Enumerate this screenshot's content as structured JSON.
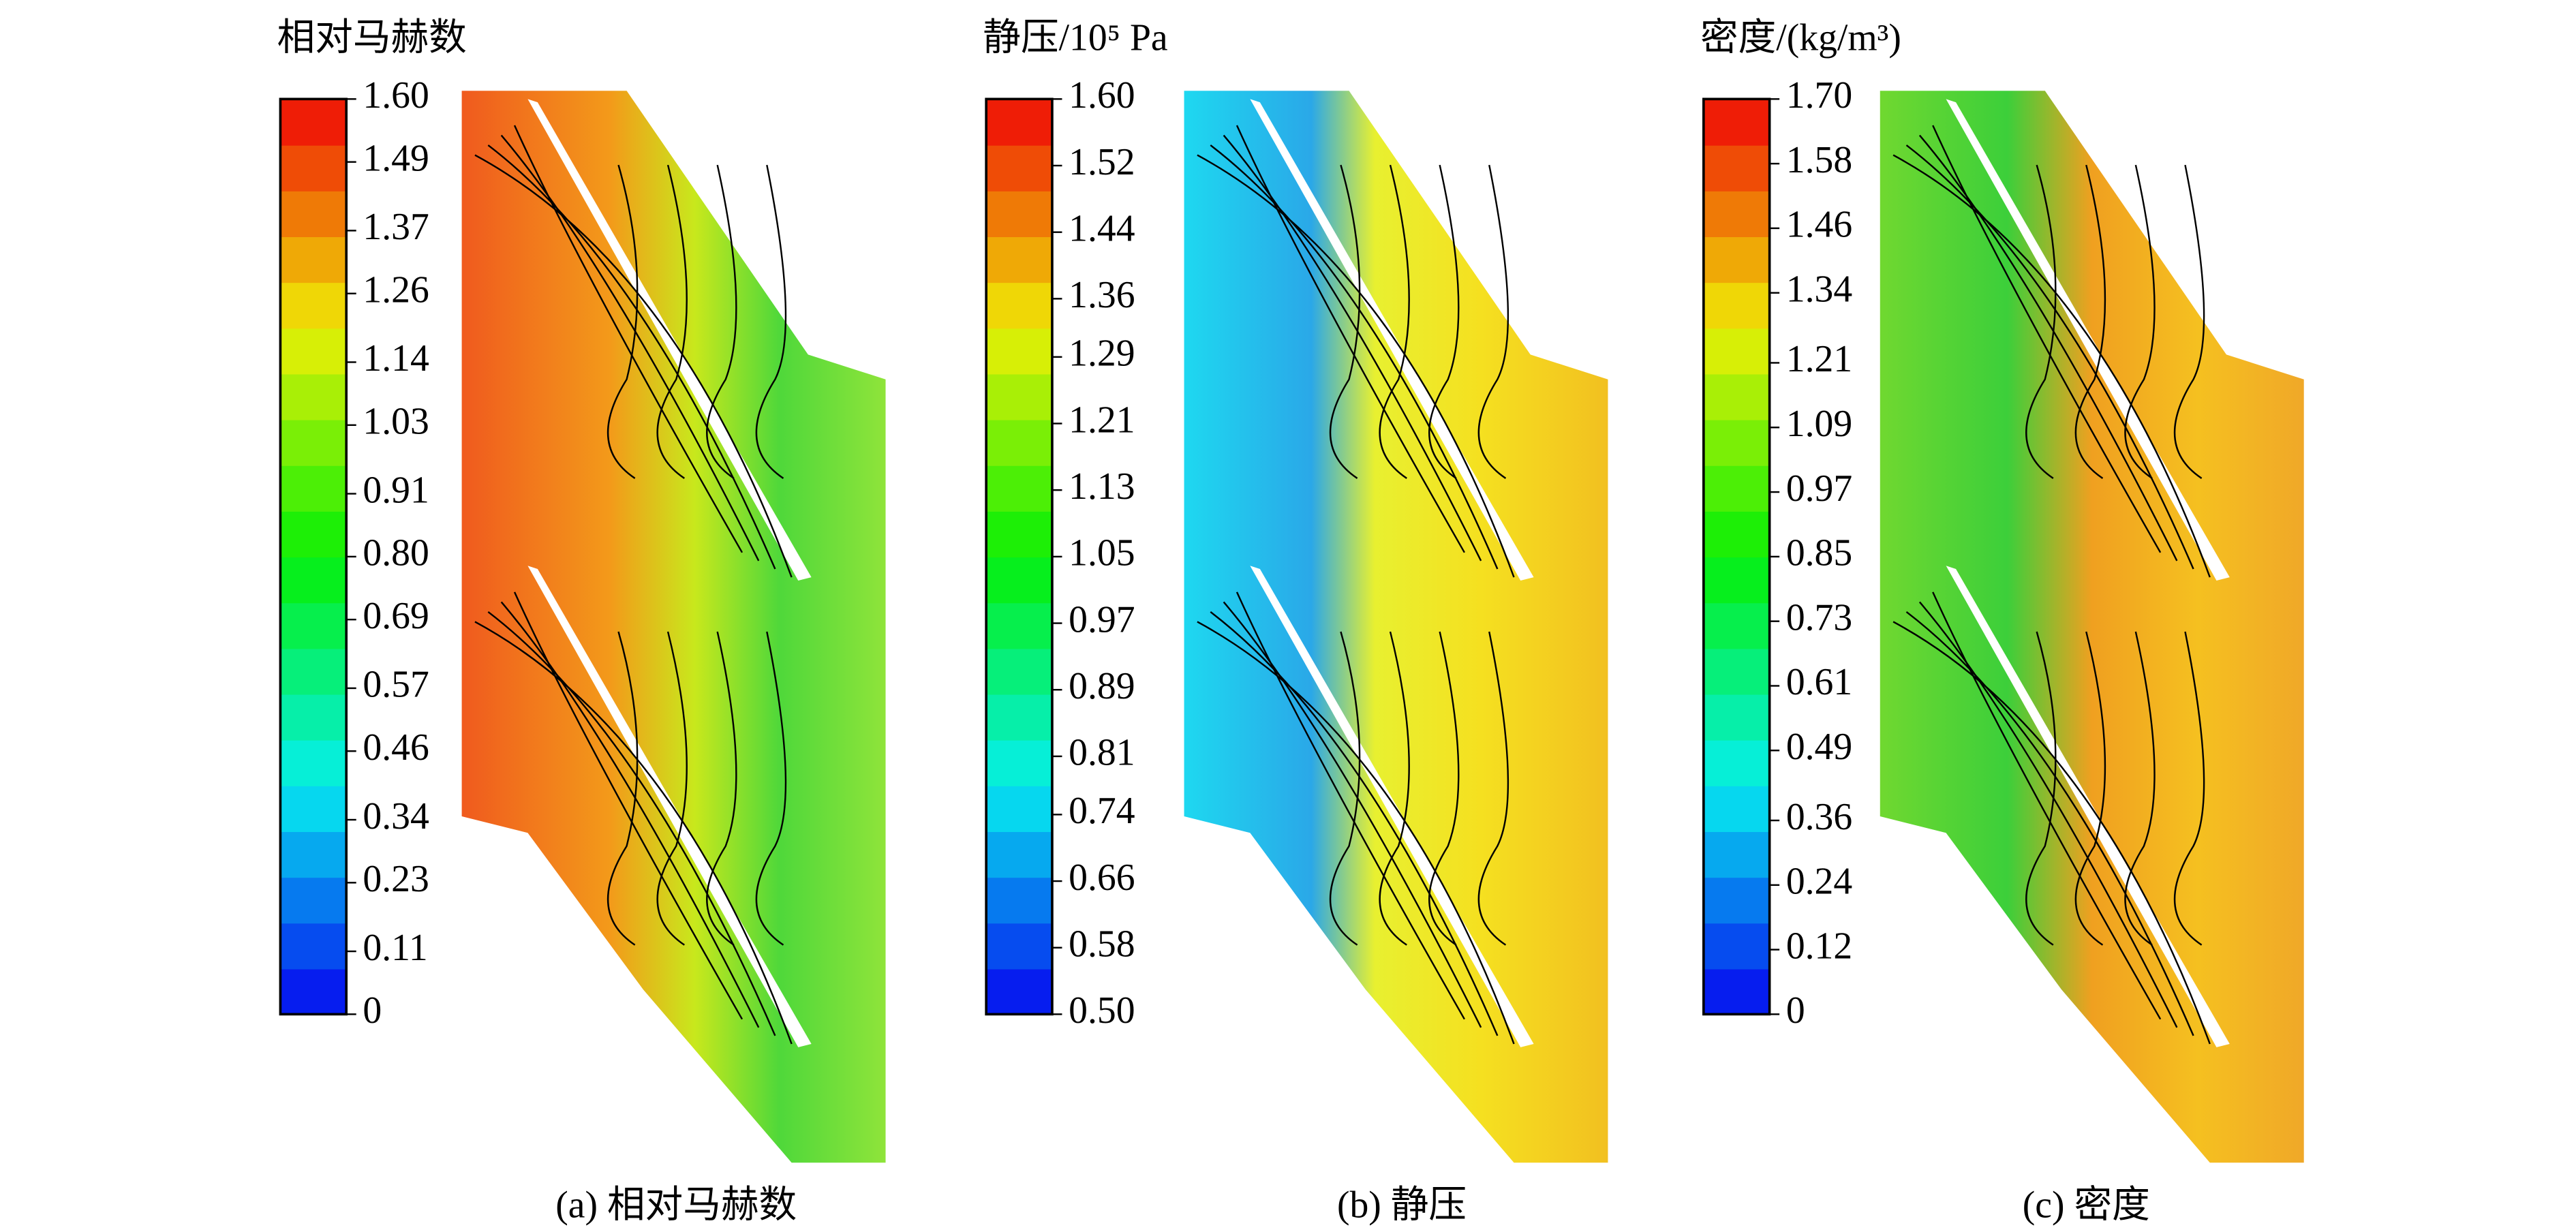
{
  "chart_data": [
    {
      "type": "contour",
      "title": "相对马赫数",
      "caption": "(a) 相对马赫数",
      "ylim": [
        0,
        1.6
      ],
      "yticks": [
        0,
        0.11,
        0.23,
        0.34,
        0.46,
        0.57,
        0.69,
        {
          "value": 0.8,
          "label": "0.80"
        },
        0.91,
        1.03,
        1.14,
        1.26,
        1.37,
        1.49,
        {
          "value": 1.6,
          "label": "1.60"
        }
      ]
    },
    {
      "type": "contour",
      "title": "静压/10⁵ Pa",
      "caption": "(b) 静压",
      "ylim": [
        0.5,
        1.6
      ],
      "yticks": [
        {
          "value": 0.5,
          "label": "0.50"
        },
        0.58,
        0.66,
        0.74,
        0.81,
        0.89,
        0.97,
        1.05,
        1.13,
        1.21,
        1.29,
        1.36,
        1.44,
        1.52,
        {
          "value": 1.6,
          "label": "1.60"
        }
      ]
    },
    {
      "type": "contour",
      "title": "密度/(kg/m³)",
      "caption": "(c) 密度",
      "ylim": [
        0,
        1.7
      ],
      "yticks": [
        0,
        0.12,
        0.24,
        0.36,
        0.49,
        0.61,
        0.73,
        0.85,
        0.97,
        1.09,
        1.21,
        1.34,
        1.46,
        1.58,
        {
          "value": 1.7,
          "label": "1.70"
        }
      ]
    }
  ]
}
